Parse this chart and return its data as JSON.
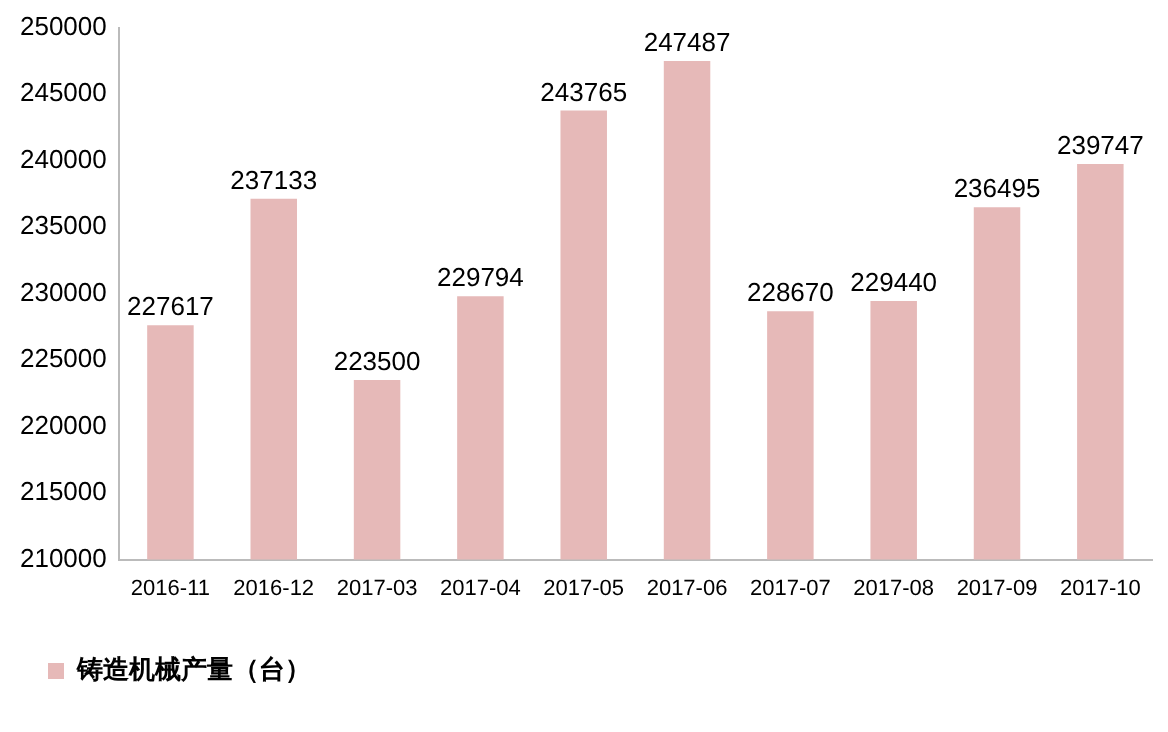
{
  "chart_data": {
    "type": "bar",
    "categories": [
      "2016-11",
      "2016-12",
      "2017-03",
      "2017-04",
      "2017-05",
      "2017-06",
      "2017-07",
      "2017-08",
      "2017-09",
      "2017-10"
    ],
    "series": [
      {
        "name": "铸造机械产量（台）",
        "color": "#e6b9b8",
        "values": [
          227617,
          237133,
          223500,
          229794,
          243765,
          247487,
          228670,
          229440,
          236495,
          239747
        ]
      }
    ],
    "ylim": [
      210000,
      250000
    ],
    "yticks": [
      210000,
      215000,
      220000,
      225000,
      230000,
      235000,
      240000,
      245000,
      250000
    ],
    "grid": false,
    "legend": "bottom left",
    "data_labels": true
  }
}
